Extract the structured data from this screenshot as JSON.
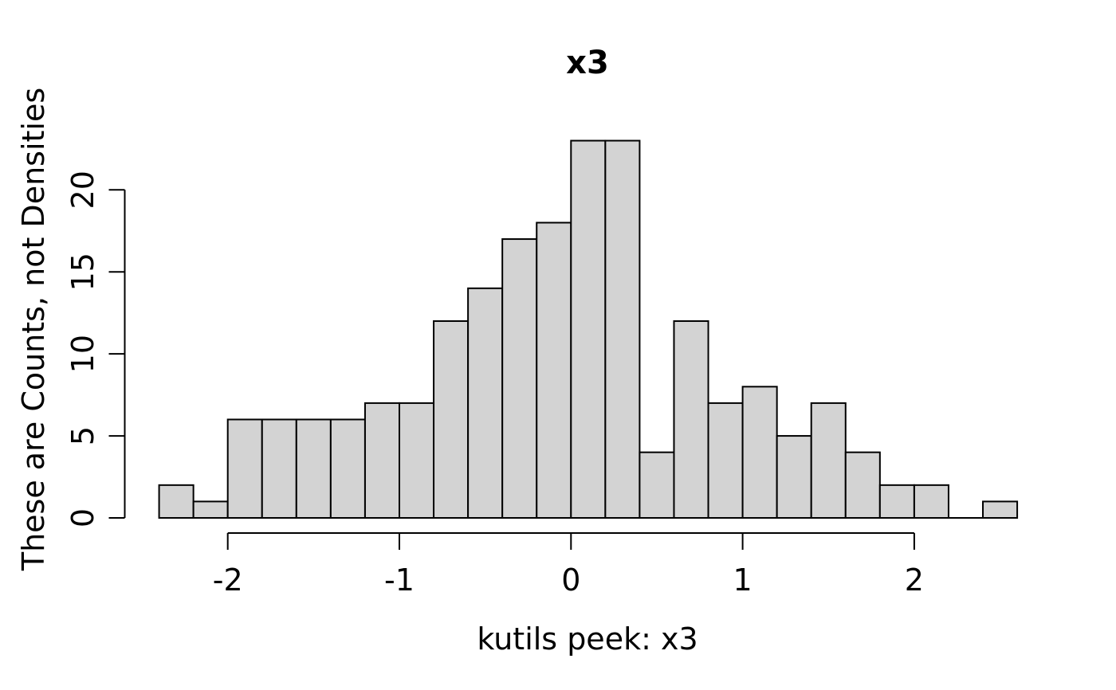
{
  "figure": {
    "title": "x3",
    "xlabel": "kutils peek: x3",
    "ylabel": "These are Counts, not Densities"
  },
  "chart_data": {
    "type": "bar",
    "subtype": "histogram",
    "title": "x3",
    "xlabel": "kutils peek: x3",
    "ylabel": "These are Counts, not Densities",
    "breaks": [
      -2.4,
      -2.2,
      -2.0,
      -1.8,
      -1.6,
      -1.4,
      -1.2,
      -1.0,
      -0.8,
      -0.6,
      -0.4,
      -0.2,
      0.0,
      0.2,
      0.4,
      0.6,
      0.8,
      1.0,
      1.2,
      1.4,
      1.6,
      1.8,
      2.0,
      2.2,
      2.4,
      2.6
    ],
    "counts": [
      2,
      1,
      6,
      6,
      6,
      6,
      7,
      7,
      12,
      14,
      17,
      18,
      23,
      23,
      4,
      12,
      7,
      8,
      5,
      7,
      4,
      2,
      2,
      0,
      1
    ],
    "total_n": 200,
    "x_ticks": [
      -2,
      -1,
      0,
      1,
      2
    ],
    "y_ticks": [
      0,
      5,
      10,
      15,
      20
    ],
    "xlim": [
      -2.6,
      2.8
    ],
    "ylim": [
      0,
      23
    ],
    "grid": false,
    "legend": "none",
    "bar_fill": "#d3d3d3",
    "bar_stroke": "#000000",
    "axis_color": "#000000",
    "text_color": "#000000",
    "background": "#ffffff"
  }
}
